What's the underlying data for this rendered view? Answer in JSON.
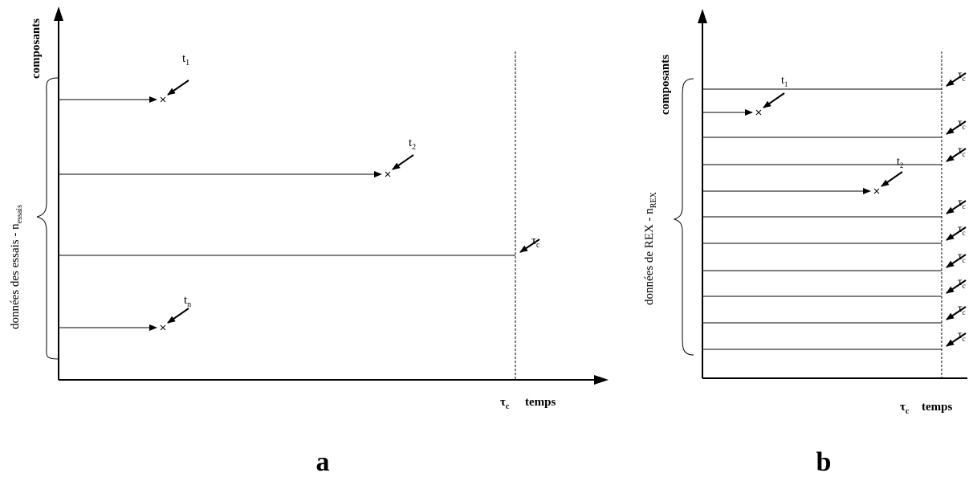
{
  "panel_a": {
    "caption": "a",
    "y_axis_label": "composants",
    "group_label_main": "données des essais - n",
    "group_label_sub": "essais",
    "time_axis_label": "temps",
    "tau_symbol": "τ",
    "tau_sub": "c",
    "rows": [
      {
        "kind": "failure",
        "label": "t",
        "sub": "1"
      },
      {
        "kind": "failure",
        "label": "t",
        "sub": "2"
      },
      {
        "kind": "censored",
        "label": "τ",
        "sub": "c"
      },
      {
        "kind": "failure",
        "label": "t",
        "sub": "n"
      }
    ]
  },
  "panel_b": {
    "caption": "b",
    "y_axis_label": "composants",
    "group_label_main": "données de REX - n",
    "group_label_sub": "REX",
    "time_axis_label": "temps",
    "tau_symbol": "τ",
    "tau_sub": "c",
    "rows": [
      {
        "kind": "censored",
        "label": "τ",
        "sub": "c"
      },
      {
        "kind": "failure",
        "label": "t",
        "sub": "1"
      },
      {
        "kind": "censored",
        "label": "τ",
        "sub": "c"
      },
      {
        "kind": "censored",
        "label": "τ",
        "sub": "c"
      },
      {
        "kind": "failure",
        "label": "t",
        "sub": "2"
      },
      {
        "kind": "censored",
        "label": "τ",
        "sub": "c"
      },
      {
        "kind": "censored",
        "label": "τ",
        "sub": "c"
      },
      {
        "kind": "censored",
        "label": "τ",
        "sub": "c"
      },
      {
        "kind": "censored",
        "label": "τ",
        "sub": "c"
      },
      {
        "kind": "censored",
        "label": "τ",
        "sub": "c"
      },
      {
        "kind": "censored",
        "label": "τ",
        "sub": "c"
      }
    ]
  }
}
